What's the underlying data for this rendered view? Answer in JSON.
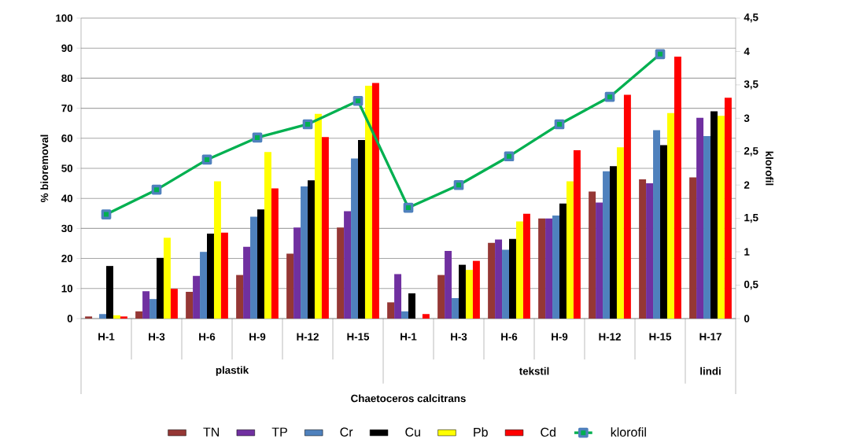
{
  "chart_data": {
    "type": "bar",
    "ylabel": "% bioremoval",
    "y2label": "klorofil",
    "categories": [
      "H-1",
      "H-3",
      "H-6",
      "H-9",
      "H-12",
      "H-15",
      "H-1",
      "H-3",
      "H-6",
      "H-9",
      "H-12",
      "H-15",
      "H-17"
    ],
    "annotations": [
      "plastik",
      "tekstil",
      "lindi",
      "Chaetoceros calcitrans"
    ],
    "series": [
      {
        "name": "TN",
        "color": "#953735",
        "values": [
          0.7,
          2.4,
          8.9,
          14.5,
          21.6,
          30.3,
          5.4,
          14.5,
          25.2,
          33.3,
          42.3,
          46.3,
          47
        ]
      },
      {
        "name": "TP",
        "color": "#7030a0",
        "values": [
          0,
          9.1,
          14.2,
          23.9,
          30.3,
          35.7,
          14.8,
          22.5,
          26.3,
          33.3,
          38.6,
          45,
          66.8
        ]
      },
      {
        "name": "Cr",
        "color": "#4f81bd",
        "values": [
          1.5,
          6.5,
          22.2,
          33.9,
          44,
          53.3,
          2.4,
          6.8,
          22.9,
          34.3,
          49,
          62.7,
          60.7
        ]
      },
      {
        "name": "Cu",
        "color": "#000000",
        "values": [
          17.5,
          20.2,
          28.3,
          36.3,
          46,
          59.4,
          8.4,
          17.9,
          26.5,
          38.3,
          50.7,
          57.7,
          69
        ]
      },
      {
        "name": "Pb",
        "color": "#ffff00",
        "values": [
          1.1,
          26.9,
          45.7,
          55.4,
          68.1,
          77.5,
          0,
          16.2,
          32.3,
          45.7,
          57,
          68.4,
          67.5
        ]
      },
      {
        "name": "Cd",
        "color": "#ff0000",
        "values": [
          0.7,
          9.9,
          28.6,
          43.3,
          60.4,
          78.4,
          1.5,
          19.2,
          34.9,
          56,
          74.5,
          87.2,
          73.5
        ]
      },
      {
        "name": "klorofil",
        "color": "#00b050",
        "type": "line",
        "axis": "y2",
        "marker": "square",
        "values": [
          1.56,
          1.93,
          2.38,
          2.71,
          2.91,
          3.26,
          1.66,
          2.0,
          2.43,
          2.91,
          3.32,
          3.96,
          null
        ]
      }
    ],
    "ylim": [
      0,
      100
    ],
    "yticks": [
      0,
      10,
      20,
      30,
      40,
      50,
      60,
      70,
      80,
      90,
      100
    ],
    "y2lim": [
      0,
      4.5
    ],
    "y2ticks": [
      0,
      {
        "value": 0.5,
        "label": "0,5"
      },
      1,
      {
        "value": 1.5,
        "label": "1,5"
      },
      2,
      {
        "value": 2.5,
        "label": "2,5"
      },
      3,
      {
        "value": 3.5,
        "label": "3,5"
      },
      4,
      {
        "value": 4.5,
        "label": "4,5"
      }
    ],
    "grid": "y",
    "legend": "bottom"
  }
}
